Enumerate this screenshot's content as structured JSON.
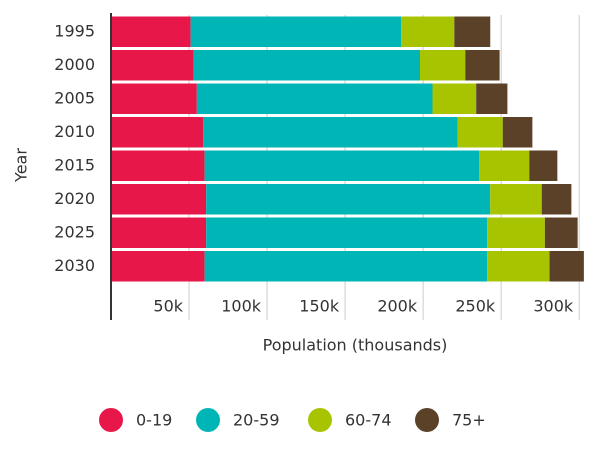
{
  "chart_data": {
    "type": "bar",
    "orientation": "horizontal",
    "stacked": true,
    "x_label": "Population (thousands)",
    "y_label": "Year",
    "categories": [
      "1995",
      "2000",
      "2005",
      "2010",
      "2015",
      "2020",
      "2025",
      "2030"
    ],
    "series": [
      {
        "name": "0-19",
        "color": "#e8174a",
        "values": [
          51,
          53,
          55,
          59,
          60,
          61,
          61,
          60
        ]
      },
      {
        "name": "20-59",
        "color": "#00b5b5",
        "values": [
          135,
          145,
          151,
          163,
          176,
          182,
          180,
          181
        ]
      },
      {
        "name": "60-74",
        "color": "#a8c400",
        "values": [
          34,
          29,
          28,
          29,
          32,
          33,
          37,
          40
        ]
      },
      {
        "name": "75+",
        "color": "#5b4128",
        "values": [
          23,
          22,
          20,
          19,
          18,
          19,
          21,
          22
        ]
      }
    ],
    "xlim": [
      0,
      305
    ],
    "xticks": [
      {
        "value": 50,
        "label": "50k"
      },
      {
        "value": 100,
        "label": "100k"
      },
      {
        "value": 150,
        "label": "150k"
      },
      {
        "value": 200,
        "label": "200k"
      },
      {
        "value": 250,
        "label": "250k"
      },
      {
        "value": 300,
        "label": "300k"
      }
    ],
    "grid": true,
    "legend": "bottom"
  }
}
